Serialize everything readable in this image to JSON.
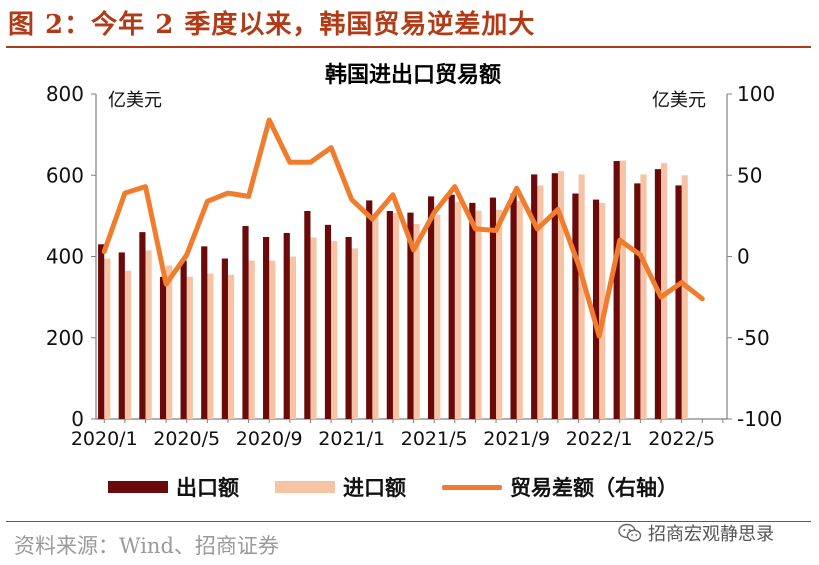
{
  "figure_title": "图 2：今年 2 季度以来，韩国贸易逆差加大",
  "source_text": "资料来源：Wind、招商证券",
  "watermark_text": "招商宏观静思录",
  "watermark_icon": "wechat-icon",
  "colors": {
    "export": "#6b0a0a",
    "import": "#f6c4a4",
    "balance": "#f07c2e",
    "accent": "#b23a17"
  },
  "chart_data": {
    "type": "bar",
    "title": "韩国进出口贸易额",
    "y_left_label": "亿美元",
    "y_right_label": "亿美元",
    "y_left_lim": [
      0,
      800
    ],
    "y_right_lim": [
      -100,
      100
    ],
    "y_left_ticks": [
      "0",
      "200",
      "400",
      "600",
      "800"
    ],
    "y_right_ticks": [
      "-100",
      "-50",
      "0",
      "50",
      "100"
    ],
    "x_tick_labels": [
      "2020/1",
      "2020/5",
      "2020/9",
      "2021/1",
      "2021/5",
      "2021/9",
      "2022/1",
      "2022/5"
    ],
    "categories": [
      "2020/1",
      "2020/2",
      "2020/3",
      "2020/4",
      "2020/5",
      "2020/6",
      "2020/7",
      "2020/8",
      "2020/9",
      "2020/10",
      "2020/11",
      "2020/12",
      "2021/1",
      "2021/2",
      "2021/3",
      "2021/4",
      "2021/5",
      "2021/6",
      "2021/7",
      "2021/8",
      "2021/9",
      "2021/10",
      "2021/11",
      "2021/12",
      "2022/1",
      "2022/2",
      "2022/3",
      "2022/4",
      "2022/5",
      "2022/6",
      "2022/7"
    ],
    "grid": false,
    "legend_position": "bottom",
    "series": [
      {
        "name": "出口额",
        "kind": "bar",
        "axis": "left",
        "values": [
          430,
          410,
          460,
          350,
          390,
          425,
          395,
          475,
          448,
          458,
          512,
          478,
          448,
          538,
          512,
          508,
          548,
          552,
          532,
          545,
          555,
          602,
          605,
          555,
          540,
          635,
          580,
          615,
          575,
          null,
          null
        ]
      },
      {
        "name": "进口额",
        "kind": "bar",
        "axis": "left",
        "values": [
          395,
          365,
          415,
          378,
          350,
          358,
          355,
          390,
          390,
          400,
          447,
          438,
          420,
          499,
          507,
          480,
          503,
          535,
          513,
          515,
          537,
          575,
          610,
          602,
          532,
          636,
          602,
          630,
          600,
          null,
          null
        ]
      },
      {
        "name": "贸易差额（右轴）",
        "kind": "line",
        "axis": "right",
        "values": [
          3,
          39,
          43,
          -17,
          1,
          34,
          39,
          37,
          84,
          58,
          58,
          67,
          35,
          23,
          38,
          4,
          27,
          43,
          17,
          16,
          42,
          17,
          29,
          -5,
          -49,
          10,
          1,
          -25,
          -16,
          -26,
          null
        ]
      }
    ]
  }
}
